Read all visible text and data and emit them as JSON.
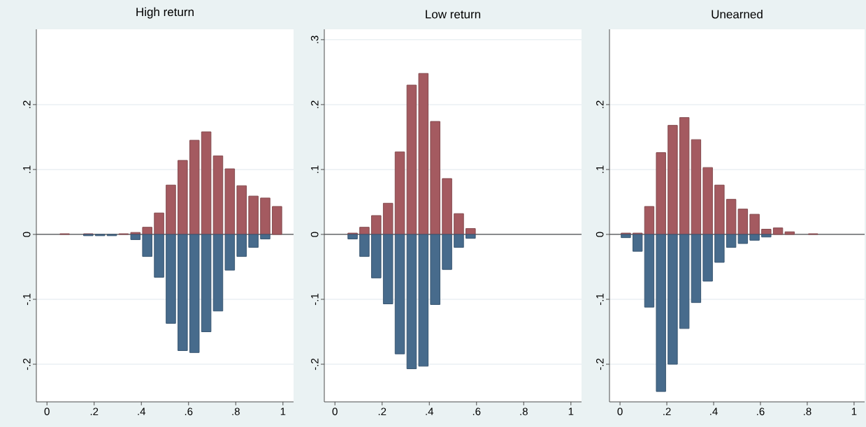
{
  "chart_data": [
    {
      "type": "bar",
      "stacked": true,
      "title": "High return",
      "x": [
        0.075,
        0.125,
        0.175,
        0.225,
        0.275,
        0.325,
        0.375,
        0.425,
        0.475,
        0.525,
        0.575,
        0.625,
        0.675,
        0.725,
        0.775,
        0.825,
        0.875,
        0.925,
        0.975
      ],
      "xlim": [
        -0.045,
        1.045
      ],
      "ylim": [
        -0.258,
        0.316
      ],
      "xticks": [
        0,
        {
          "value": 0.2,
          "label": ".2"
        },
        {
          "value": 0.4,
          "label": ".4"
        },
        {
          "value": 0.6,
          "label": ".6"
        },
        {
          "value": 0.8,
          "label": ".8"
        },
        1
      ],
      "yticks": [
        {
          "value": -0.2,
          "label": "-.2"
        },
        {
          "value": -0.1,
          "label": "-.1"
        },
        0,
        {
          "value": 0.1,
          "label": ".1"
        },
        {
          "value": 0.2,
          "label": ".2"
        }
      ],
      "grid": "y",
      "ref_lines": [
        {
          "axis": "y",
          "value": 0,
          "color": "#4d4d4d"
        }
      ],
      "series": [
        {
          "color": "#a45a60",
          "values": [
            0.001,
            null,
            0.001,
            null,
            null,
            0.001,
            0.003,
            0.011,
            0.033,
            0.076,
            0.114,
            0.145,
            0.158,
            0.121,
            0.101,
            0.075,
            0.059,
            0.056,
            0.043
          ]
        },
        {
          "color": "#476b8c",
          "values": [
            null,
            null,
            -0.002,
            -0.002,
            -0.002,
            null,
            -0.008,
            -0.034,
            -0.066,
            -0.137,
            -0.179,
            -0.182,
            -0.15,
            -0.118,
            -0.055,
            -0.034,
            -0.02,
            -0.007,
            null
          ]
        }
      ]
    },
    {
      "type": "bar",
      "stacked": true,
      "title": "Low return",
      "x": [
        0.075,
        0.125,
        0.175,
        0.225,
        0.275,
        0.325,
        0.375,
        0.425,
        0.475,
        0.525,
        0.575
      ],
      "xlim": [
        -0.045,
        1.045
      ],
      "ylim": [
        -0.258,
        0.316
      ],
      "xticks": [
        0,
        {
          "value": 0.2,
          "label": ".2"
        },
        {
          "value": 0.4,
          "label": ".4"
        },
        {
          "value": 0.6,
          "label": ".6"
        },
        {
          "value": 0.8,
          "label": ".8"
        },
        1
      ],
      "yticks": [
        {
          "value": -0.2,
          "label": "-.2"
        },
        {
          "value": -0.1,
          "label": "-.1"
        },
        0,
        {
          "value": 0.1,
          "label": ".1"
        },
        {
          "value": 0.2,
          "label": ".2"
        },
        {
          "value": 0.3,
          "label": ".3"
        }
      ],
      "grid": "y",
      "ref_lines": [
        {
          "axis": "y",
          "value": 0,
          "color": "#4d4d4d"
        }
      ],
      "series": [
        {
          "color": "#a45a60",
          "values": [
            0.002,
            0.011,
            0.029,
            0.048,
            0.127,
            0.23,
            0.248,
            0.174,
            0.086,
            0.032,
            0.009
          ]
        },
        {
          "color": "#476b8c",
          "values": [
            -0.007,
            -0.034,
            -0.067,
            -0.107,
            -0.184,
            -0.207,
            -0.203,
            -0.108,
            -0.054,
            -0.02,
            -0.006
          ]
        }
      ]
    },
    {
      "type": "bar",
      "stacked": true,
      "title": "Unearned",
      "x": [
        0.025,
        0.075,
        0.125,
        0.175,
        0.225,
        0.275,
        0.325,
        0.375,
        0.425,
        0.475,
        0.525,
        0.575,
        0.625,
        0.675,
        0.725,
        0.825
      ],
      "xlim": [
        -0.045,
        1.045
      ],
      "ylim": [
        -0.258,
        0.316
      ],
      "xticks": [
        0,
        {
          "value": 0.2,
          "label": ".2"
        },
        {
          "value": 0.4,
          "label": ".4"
        },
        {
          "value": 0.6,
          "label": ".6"
        },
        {
          "value": 0.8,
          "label": ".8"
        },
        1
      ],
      "yticks": [
        {
          "value": -0.2,
          "label": "-.2"
        },
        {
          "value": -0.1,
          "label": "-.1"
        },
        0,
        {
          "value": 0.1,
          "label": ".1"
        },
        {
          "value": 0.2,
          "label": ".2"
        }
      ],
      "grid": "y",
      "ref_lines": [
        {
          "axis": "y",
          "value": 0,
          "color": "#4d4d4d"
        }
      ],
      "series": [
        {
          "color": "#a45a60",
          "values": [
            0.002,
            0.002,
            0.043,
            0.126,
            0.168,
            0.18,
            0.146,
            0.103,
            0.076,
            0.054,
            0.039,
            0.031,
            0.008,
            0.01,
            0.004,
            0.001
          ]
        },
        {
          "color": "#476b8c",
          "values": [
            -0.005,
            -0.026,
            -0.112,
            -0.242,
            -0.2,
            -0.145,
            -0.105,
            -0.072,
            -0.043,
            -0.02,
            -0.014,
            -0.009,
            -0.004,
            null,
            null,
            null
          ]
        }
      ]
    }
  ]
}
